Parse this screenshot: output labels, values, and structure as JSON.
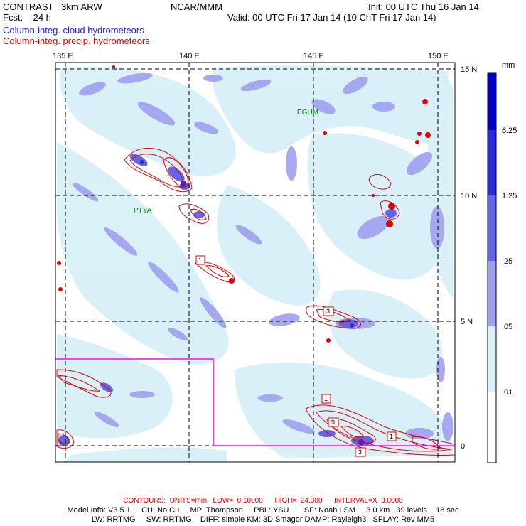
{
  "header": {
    "model": "CONTRAST   3km ARW",
    "org": "NCAR/MMM",
    "init": "Init: 00 UTC Thu 16 Jan 14",
    "fcst": "Fcst:    24 h",
    "valid": "Valid: 00 UTC Fri 17 Jan 14 (10 ChT Fri 17 Jan 14)",
    "field1": "Column-integ. cloud hydrometeors",
    "field2": "Column-integ. precip. hydrometeors"
  },
  "colors": {
    "field1": "#2020d0",
    "field2": "#e00000",
    "box": "#ff00ff"
  },
  "axes": {
    "lon_labels": [
      "135 E",
      "140 E",
      "145 E",
      "150 E"
    ],
    "lat_labels": [
      "15 N",
      "10 N",
      "5 N",
      "0"
    ]
  },
  "places": [
    {
      "name": "PGUM"
    },
    {
      "name": "PTYA"
    }
  ],
  "contour_labels": [
    "1",
    "3",
    "1",
    "9",
    "1",
    "3"
  ],
  "colorbar": {
    "unit": "mm",
    "levels": [
      "6.25",
      "1.25",
      ".25",
      ".05",
      ".01"
    ],
    "colors": [
      "#0000c8",
      "#2a2ad8",
      "#6464e6",
      "#a0a0ee",
      "#d8f0f8",
      "#ffffff"
    ]
  },
  "footer": {
    "contours": "CONTOURS:  UNITS=mm   LOW=  0.10000      HIGH=  24.300      INTERVAL=X  3.0000",
    "model_info": "Model Info: V3.5.1     CU: No Cu     MP: Thompson     PBL: YSU       SF: Noah LSM     3.0 km   39 levels    18 sec",
    "model_info2": "LW: RRTMG     SW: RRTMG    DIFF: simple KM: 3D Smagor DAMP: Rayleigh3   SFLAY: Rev MM5"
  }
}
